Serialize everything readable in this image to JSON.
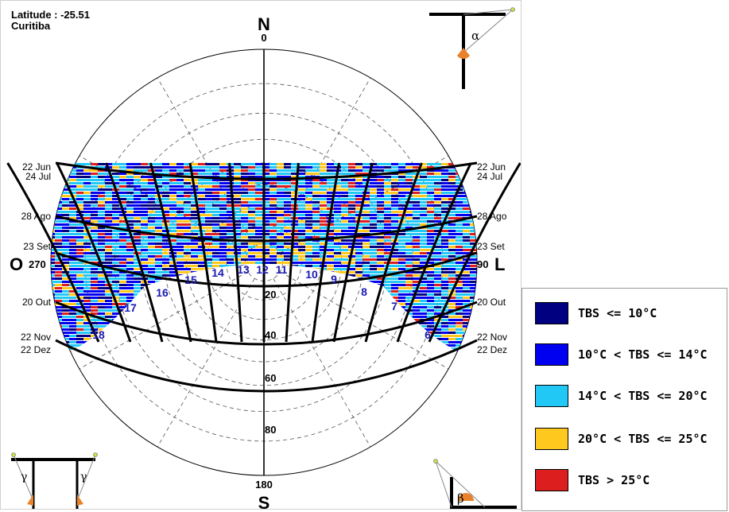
{
  "header": {
    "latitude": "Latitude : -25.51",
    "city": "Curitiba"
  },
  "compass": {
    "north": "N",
    "south": "S",
    "west": "O",
    "east": "L"
  },
  "chart_data": {
    "type": "heatmap",
    "projection": "stereographic sun path diagram",
    "azimuth_labels": [
      {
        "label": "0",
        "az": 0
      },
      {
        "label": "90",
        "az": 90
      },
      {
        "label": "180",
        "az": 180
      },
      {
        "label": "270",
        "az": 270
      }
    ],
    "altitude_labels": [
      {
        "label": "20",
        "alt": 20
      },
      {
        "label": "40",
        "alt": 40
      },
      {
        "label": "60",
        "alt": 60
      },
      {
        "label": "80",
        "alt": 80
      }
    ],
    "altitude_circles": [
      10,
      20,
      30,
      40,
      50,
      60,
      70,
      80
    ],
    "azimuth_lines_step": 30,
    "date_labels_left": [
      "22 Jun",
      "24 Jul",
      "28 Ago",
      "23 Set",
      "20 Out",
      "22 Nov",
      "22 Dez"
    ],
    "date_labels_right": [
      "22 Jun",
      "24 Jul",
      "28 Ago",
      "23 Set",
      "20 Out",
      "22 Nov",
      "22 Dez"
    ],
    "hour_labels": [
      "6",
      "7",
      "8",
      "9",
      "10",
      "11",
      "12",
      "13",
      "14",
      "15",
      "16",
      "17",
      "18"
    ],
    "legend": [
      {
        "label": "TBS <= 10°C",
        "color": "#000080"
      },
      {
        "label": "10°C < TBS <= 14°C",
        "color": "#0000f0"
      },
      {
        "label": "14°C < TBS <= 20°C",
        "color": "#22c8f5"
      },
      {
        "label": "20°C < TBS <= 25°C",
        "color": "#ffc81e"
      },
      {
        "label": "TBS > 25°C",
        "color": "#dc1e1e"
      }
    ]
  },
  "protractor_icons": {
    "alpha": "α",
    "beta": "β",
    "gamma": "γ"
  }
}
